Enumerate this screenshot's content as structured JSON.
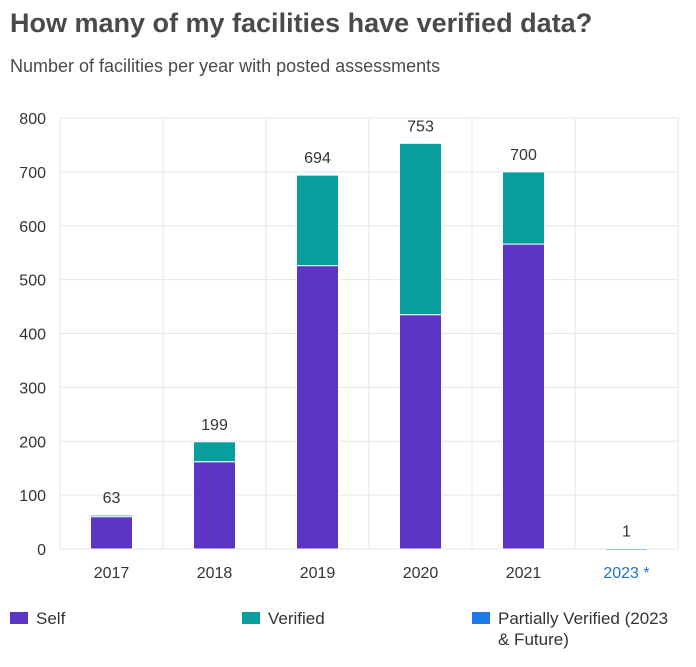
{
  "header": {
    "title": "How many of my facilities have verified data?",
    "subtitle": "Number of facilities per year with posted assessments"
  },
  "colors": {
    "self": "#5c35c4",
    "verified": "#089e9e",
    "partial": "#1f7ae6",
    "grid": "#e6e6e6",
    "axis_text": "#333333",
    "highlight_tick": "#1f6fd1"
  },
  "chart_data": {
    "type": "bar",
    "stacked": true,
    "categories": [
      "2017",
      "2018",
      "2019",
      "2020",
      "2021",
      "2023 *"
    ],
    "highlighted_category": "2023 *",
    "series": [
      {
        "name": "Self",
        "key": "self",
        "values": [
          60,
          162,
          526,
          435,
          566,
          0
        ]
      },
      {
        "name": "Verified",
        "key": "verified",
        "values": [
          3,
          37,
          168,
          318,
          134,
          0
        ]
      },
      {
        "name": "Partially Verified (2023 & Future)",
        "key": "partial",
        "values": [
          0,
          0,
          0,
          0,
          0,
          1
        ]
      }
    ],
    "totals": [
      63,
      199,
      694,
      753,
      700,
      1
    ],
    "total_labels": [
      "63",
      "199",
      "694",
      "753",
      "700",
      "1"
    ],
    "ylim": [
      0,
      800
    ],
    "yticks": [
      0,
      100,
      200,
      300,
      400,
      500,
      600,
      700,
      800
    ],
    "ytick_labels": [
      "0",
      "100",
      "200",
      "300",
      "400",
      "500",
      "600",
      "700",
      "800"
    ],
    "grid": true,
    "legend_position": "bottom"
  },
  "legend": {
    "items": [
      {
        "label": "Self",
        "label_line2": ""
      },
      {
        "label": "Verified",
        "label_line2": ""
      },
      {
        "label": "Partially Verified (2023",
        "label_line2": "& Future)"
      }
    ]
  }
}
